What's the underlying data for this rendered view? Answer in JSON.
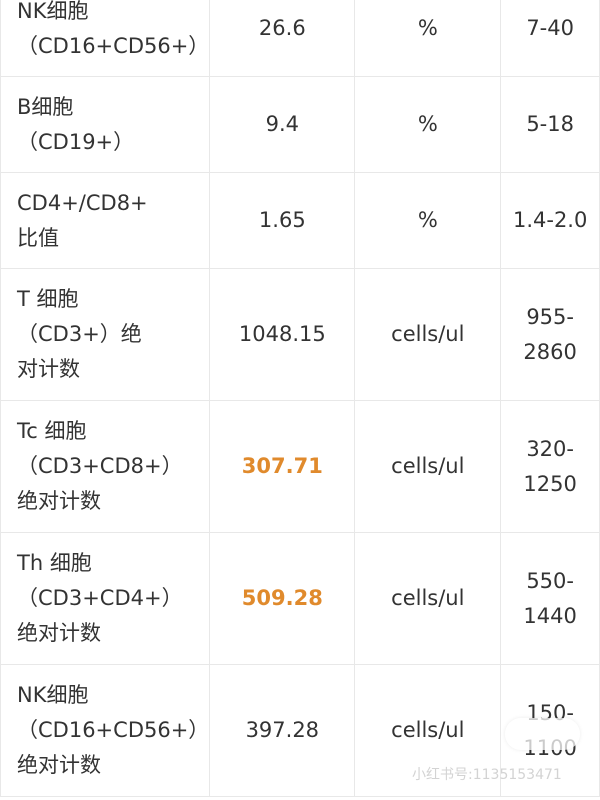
{
  "rows": [
    {
      "name": "NK细胞\n（CD16+CD56+）",
      "value": "26.6",
      "unit": "%",
      "ref": "7-40",
      "highlight": false
    },
    {
      "name": "B细胞\n（CD19+）",
      "value": "9.4",
      "unit": "%",
      "ref": "5-18",
      "highlight": false
    },
    {
      "name": "CD4+/CD8+\n比值",
      "value": "1.65",
      "unit": "%",
      "ref": "1.4-2.0",
      "highlight": false
    },
    {
      "name": "T 细胞\n（CD3+）绝\n对计数",
      "value": "1048.15",
      "unit": "cells/ul",
      "ref": "955-2860",
      "highlight": false
    },
    {
      "name": "Tc 细胞\n（CD3+CD8+）\n绝对计数",
      "value": "307.71",
      "unit": "cells/ul",
      "ref": "320-1250",
      "highlight": true
    },
    {
      "name": "Th 细胞\n（CD3+CD4+）\n绝对计数",
      "value": "509.28",
      "unit": "cells/ul",
      "ref": "550-1440",
      "highlight": true
    },
    {
      "name": "NK细胞\n（CD16+CD56+）\n绝对计数",
      "value": "397.28",
      "unit": "cells/ul",
      "ref": "150-1100",
      "highlight": false
    }
  ],
  "highlight_color": "#e08a2c",
  "watermark": "小红书号:1135153471"
}
